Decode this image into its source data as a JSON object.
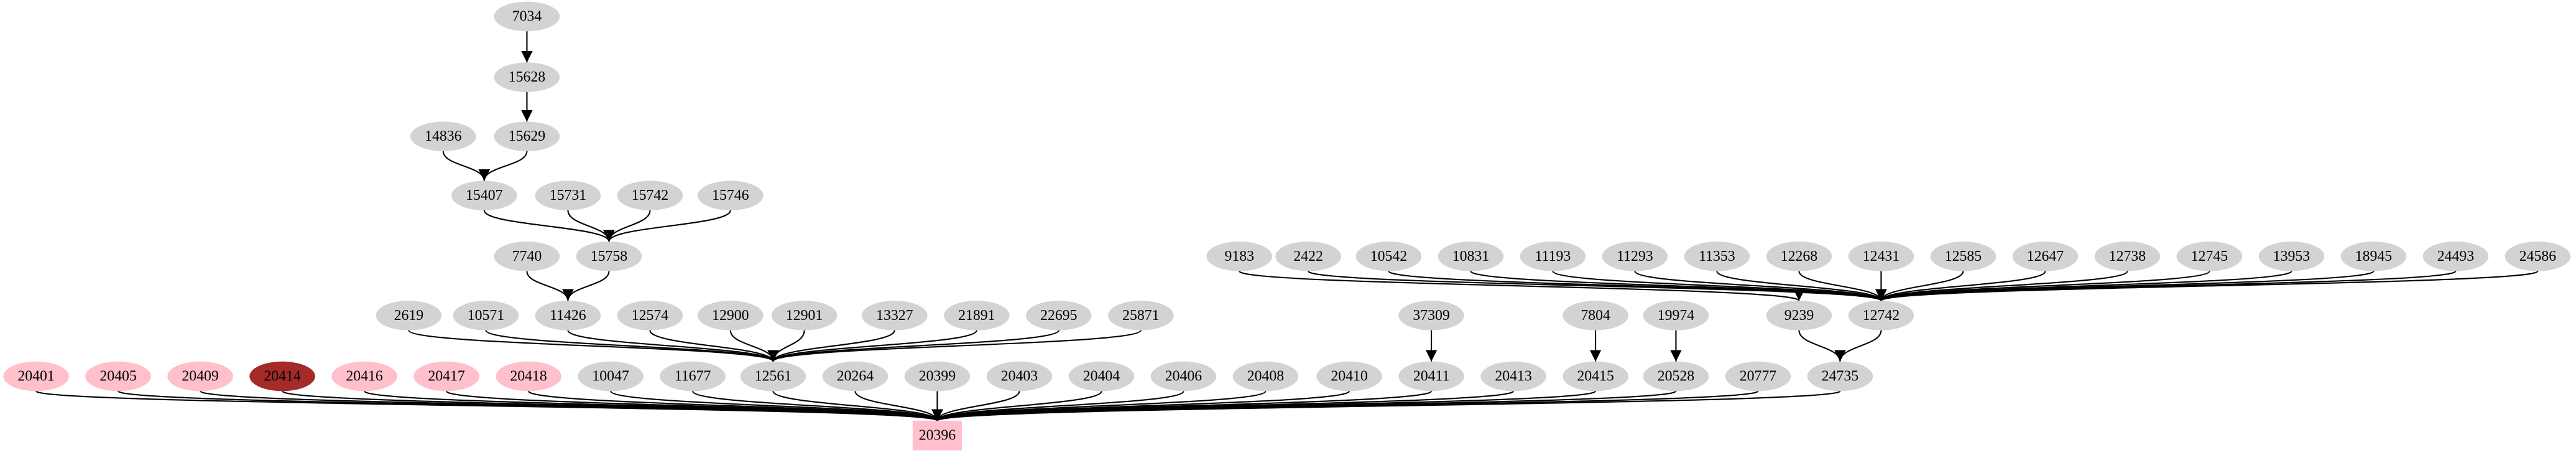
{
  "nodes": [
    {
      "label": "7034",
      "fill": "#d3d3d3"
    },
    {
      "label": "15628",
      "fill": "#d3d3d3"
    },
    {
      "label": "14836",
      "fill": "#d3d3d3"
    },
    {
      "label": "15629",
      "fill": "#d3d3d3"
    },
    {
      "label": "15407",
      "fill": "#d3d3d3"
    },
    {
      "label": "15731",
      "fill": "#d3d3d3"
    },
    {
      "label": "15742",
      "fill": "#d3d3d3"
    },
    {
      "label": "15746",
      "fill": "#d3d3d3"
    },
    {
      "label": "7740",
      "fill": "#d3d3d3"
    },
    {
      "label": "15758",
      "fill": "#d3d3d3"
    },
    {
      "label": "9183",
      "fill": "#d3d3d3"
    },
    {
      "label": "2422",
      "fill": "#d3d3d3"
    },
    {
      "label": "10542",
      "fill": "#d3d3d3"
    },
    {
      "label": "10831",
      "fill": "#d3d3d3"
    },
    {
      "label": "11193",
      "fill": "#d3d3d3"
    },
    {
      "label": "11293",
      "fill": "#d3d3d3"
    },
    {
      "label": "11353",
      "fill": "#d3d3d3"
    },
    {
      "label": "12268",
      "fill": "#d3d3d3"
    },
    {
      "label": "12431",
      "fill": "#d3d3d3"
    },
    {
      "label": "12585",
      "fill": "#d3d3d3"
    },
    {
      "label": "12647",
      "fill": "#d3d3d3"
    },
    {
      "label": "12738",
      "fill": "#d3d3d3"
    },
    {
      "label": "12745",
      "fill": "#d3d3d3"
    },
    {
      "label": "13953",
      "fill": "#d3d3d3"
    },
    {
      "label": "18945",
      "fill": "#d3d3d3"
    },
    {
      "label": "24493",
      "fill": "#d3d3d3"
    },
    {
      "label": "24586",
      "fill": "#d3d3d3"
    },
    {
      "label": "2619",
      "fill": "#d3d3d3"
    },
    {
      "label": "10571",
      "fill": "#d3d3d3"
    },
    {
      "label": "11426",
      "fill": "#d3d3d3"
    },
    {
      "label": "12574",
      "fill": "#d3d3d3"
    },
    {
      "label": "12900",
      "fill": "#d3d3d3"
    },
    {
      "label": "12901",
      "fill": "#d3d3d3"
    },
    {
      "label": "13327",
      "fill": "#d3d3d3"
    },
    {
      "label": "21891",
      "fill": "#d3d3d3"
    },
    {
      "label": "22695",
      "fill": "#d3d3d3"
    },
    {
      "label": "25871",
      "fill": "#d3d3d3"
    },
    {
      "label": "37309",
      "fill": "#d3d3d3"
    },
    {
      "label": "7804",
      "fill": "#d3d3d3"
    },
    {
      "label": "19974",
      "fill": "#d3d3d3"
    },
    {
      "label": "9239",
      "fill": "#d3d3d3"
    },
    {
      "label": "12742",
      "fill": "#d3d3d3"
    },
    {
      "label": "20401",
      "fill": "#ffc0cb"
    },
    {
      "label": "20405",
      "fill": "#ffc0cb"
    },
    {
      "label": "20409",
      "fill": "#ffc0cb"
    },
    {
      "label": "20414",
      "fill": "#a52a2a"
    },
    {
      "label": "20416",
      "fill": "#ffc0cb"
    },
    {
      "label": "20417",
      "fill": "#ffc0cb"
    },
    {
      "label": "20418",
      "fill": "#ffc0cb"
    },
    {
      "label": "10047",
      "fill": "#d3d3d3"
    },
    {
      "label": "11677",
      "fill": "#d3d3d3"
    },
    {
      "label": "12561",
      "fill": "#d3d3d3"
    },
    {
      "label": "20264",
      "fill": "#d3d3d3"
    },
    {
      "label": "20399",
      "fill": "#d3d3d3"
    },
    {
      "label": "20403",
      "fill": "#d3d3d3"
    },
    {
      "label": "20404",
      "fill": "#d3d3d3"
    },
    {
      "label": "20406",
      "fill": "#d3d3d3"
    },
    {
      "label": "20408",
      "fill": "#d3d3d3"
    },
    {
      "label": "20410",
      "fill": "#d3d3d3"
    },
    {
      "label": "20411",
      "fill": "#d3d3d3"
    },
    {
      "label": "20413",
      "fill": "#d3d3d3"
    },
    {
      "label": "20415",
      "fill": "#d3d3d3"
    },
    {
      "label": "20528",
      "fill": "#d3d3d3"
    },
    {
      "label": "20777",
      "fill": "#d3d3d3"
    },
    {
      "label": "24735",
      "fill": "#d3d3d3"
    },
    {
      "label": "20396",
      "fill": "#ffc0cb",
      "shape": "box"
    }
  ]
}
